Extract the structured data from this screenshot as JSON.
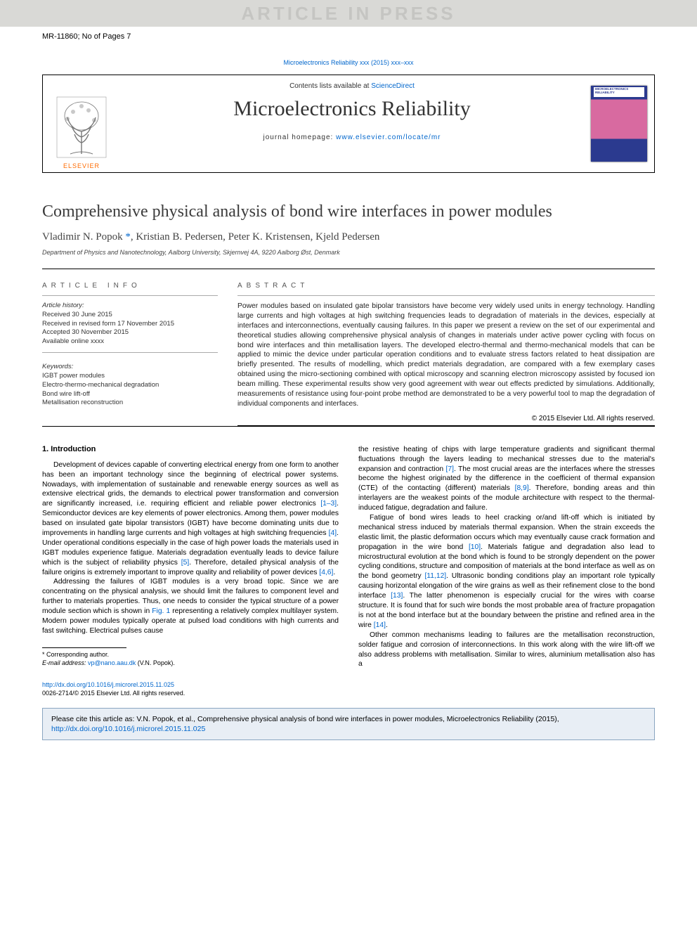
{
  "watermark": "ARTICLE IN PRESS",
  "header_meta": "MR-11860; No of Pages 7",
  "journal_ref_link": "Microelectronics Reliability xxx (2015) xxx–xxx",
  "journal_box": {
    "contents_prefix": "Contents lists available at ",
    "contents_link": "ScienceDirect",
    "journal_title": "Microelectronics Reliability",
    "homepage_prefix": "journal homepage: ",
    "homepage_link": "www.elsevier.com/locate/mr",
    "publisher": "ELSEVIER",
    "cover_title": "MICROELECTRONICS RELIABILITY"
  },
  "article": {
    "title": "Comprehensive physical analysis of bond wire interfaces in power modules",
    "authors_html": "Vladimir N. Popok *, Kristian B. Pedersen, Peter K. Kristensen, Kjeld Pedersen",
    "author1": "Vladimir N. Popok ",
    "corr_mark": "*",
    "authors_rest": ", Kristian B. Pedersen, Peter K. Kristensen, Kjeld Pedersen",
    "affiliation": "Department of Physics and Nanotechnology, Aalborg University, Skjernvej 4A, 9220 Aalborg Øst, Denmark"
  },
  "article_info": {
    "heading": "ARTICLE INFO",
    "history_label": "Article history:",
    "received": "Received 30 June 2015",
    "revised": "Received in revised form 17 November 2015",
    "accepted": "Accepted 30 November 2015",
    "available": "Available online xxxx",
    "keywords_label": "Keywords:",
    "keywords": [
      "IGBT power modules",
      "Electro-thermo-mechanical degradation",
      "Bond wire lift-off",
      "Metallisation reconstruction"
    ]
  },
  "abstract": {
    "heading": "ABSTRACT",
    "text": "Power modules based on insulated gate bipolar transistors have become very widely used units in energy technology. Handling large currents and high voltages at high switching frequencies leads to degradation of materials in the devices, especially at interfaces and interconnections, eventually causing failures. In this paper we present a review on the set of our experimental and theoretical studies allowing comprehensive physical analysis of changes in materials under active power cycling with focus on bond wire interfaces and thin metallisation layers. The developed electro-thermal and thermo-mechanical models that can be applied to mimic the device under particular operation conditions and to evaluate stress factors related to heat dissipation are briefly presented. The results of modelling, which predict materials degradation, are compared with a few exemplary cases obtained using the micro-sectioning combined with optical microscopy and scanning electron microscopy assisted by focused ion beam milling. These experimental results show very good agreement with wear out effects predicted by simulations. Additionally, measurements of resistance using four-point probe method are demonstrated to be a very powerful tool to map the degradation of individual components and interfaces.",
    "copyright": "© 2015 Elsevier Ltd. All rights reserved."
  },
  "body": {
    "section_heading": "1. Introduction",
    "col1_p1": "Development of devices capable of converting electrical energy from one form to another has been an important technology since the beginning of electrical power systems. Nowadays, with implementation of sustainable and renewable energy sources as well as extensive electrical grids, the demands to electrical power transformation and conversion are significantly increased, i.e. requiring efficient and reliable power electronics [1–3]. Semiconductor devices are key elements of power electronics. Among them, power modules based on insulated gate bipolar transistors (IGBT) have become dominating units due to improvements in handling large currents and high voltages at high switching frequencies [4]. Under operational conditions especially in the case of high power loads the materials used in IGBT modules experience fatigue. Materials degradation eventually leads to device failure which is the subject of reliability physics [5]. Therefore, detailed physical analysis of the failure origins is extremely important to improve quality and reliability of power devices [4,6].",
    "col1_p2": "Addressing the failures of IGBT modules is a very broad topic. Since we are concentrating on the physical analysis, we should limit the failures to component level and further to materials properties. Thus, one needs to consider the typical structure of a power module section which is shown in Fig. 1 representing a relatively complex multilayer system. Modern power modules typically operate at pulsed load conditions with high currents and fast switching. Electrical pulses cause",
    "col2_p1": "the resistive heating of chips with large temperature gradients and significant thermal fluctuations through the layers leading to mechanical stresses due to the material's expansion and contraction [7]. The most crucial areas are the interfaces where the stresses become the highest originated by the difference in the coefficient of thermal expansion (CTE) of the contacting (different) materials [8,9]. Therefore, bonding areas and thin interlayers are the weakest points of the module architecture with respect to the thermal-induced fatigue, degradation and failure.",
    "col2_p2": "Fatigue of bond wires leads to heel cracking or/and lift-off which is initiated by mechanical stress induced by materials thermal expansion. When the strain exceeds the elastic limit, the plastic deformation occurs which may eventually cause crack formation and propagation in the wire bond [10]. Materials fatigue and degradation also lead to microstructural evolution at the bond which is found to be strongly dependent on the power cycling conditions, structure and composition of materials at the bond interface as well as on the bond geometry [11,12]. Ultrasonic bonding conditions play an important role typically causing horizontal elongation of the wire grains as well as their refinement close to the bond interface [13]. The latter phenomenon is especially crucial for the wires with coarse structure. It is found that for such wire bonds the most probable area of fracture propagation is not at the bond interface but at the boundary between the pristine and refined area in the wire [14].",
    "col2_p3": "Other common mechanisms leading to failures are the metallisation reconstruction, solder fatigue and corrosion of interconnections. In this work along with the wire lift-off we also address problems with metallisation. Similar to wires, aluminium metallisation also has a"
  },
  "footnote": {
    "corr": "* Corresponding author.",
    "email_label": "E-mail address: ",
    "email": "vp@nano.aau.dk",
    "email_suffix": " (V.N. Popok)."
  },
  "doi": {
    "link": "http://dx.doi.org/10.1016/j.microrel.2015.11.025",
    "issn_line": "0026-2714/© 2015 Elsevier Ltd. All rights reserved."
  },
  "cite_box": {
    "prefix": "Please cite this article as: V.N. Popok, et al., Comprehensive physical analysis of bond wire interfaces in power modules, Microelectronics Reliability (2015), ",
    "link": "http://dx.doi.org/10.1016/j.microrel.2015.11.025"
  },
  "colors": {
    "link": "#0066cc",
    "watermark_bg": "#d9d9d6",
    "watermark_text": "#c5c5c2",
    "citebox_bg": "#e8eef5",
    "citebox_border": "#8aa6c1",
    "elsevier_orange": "#ff6b00"
  }
}
